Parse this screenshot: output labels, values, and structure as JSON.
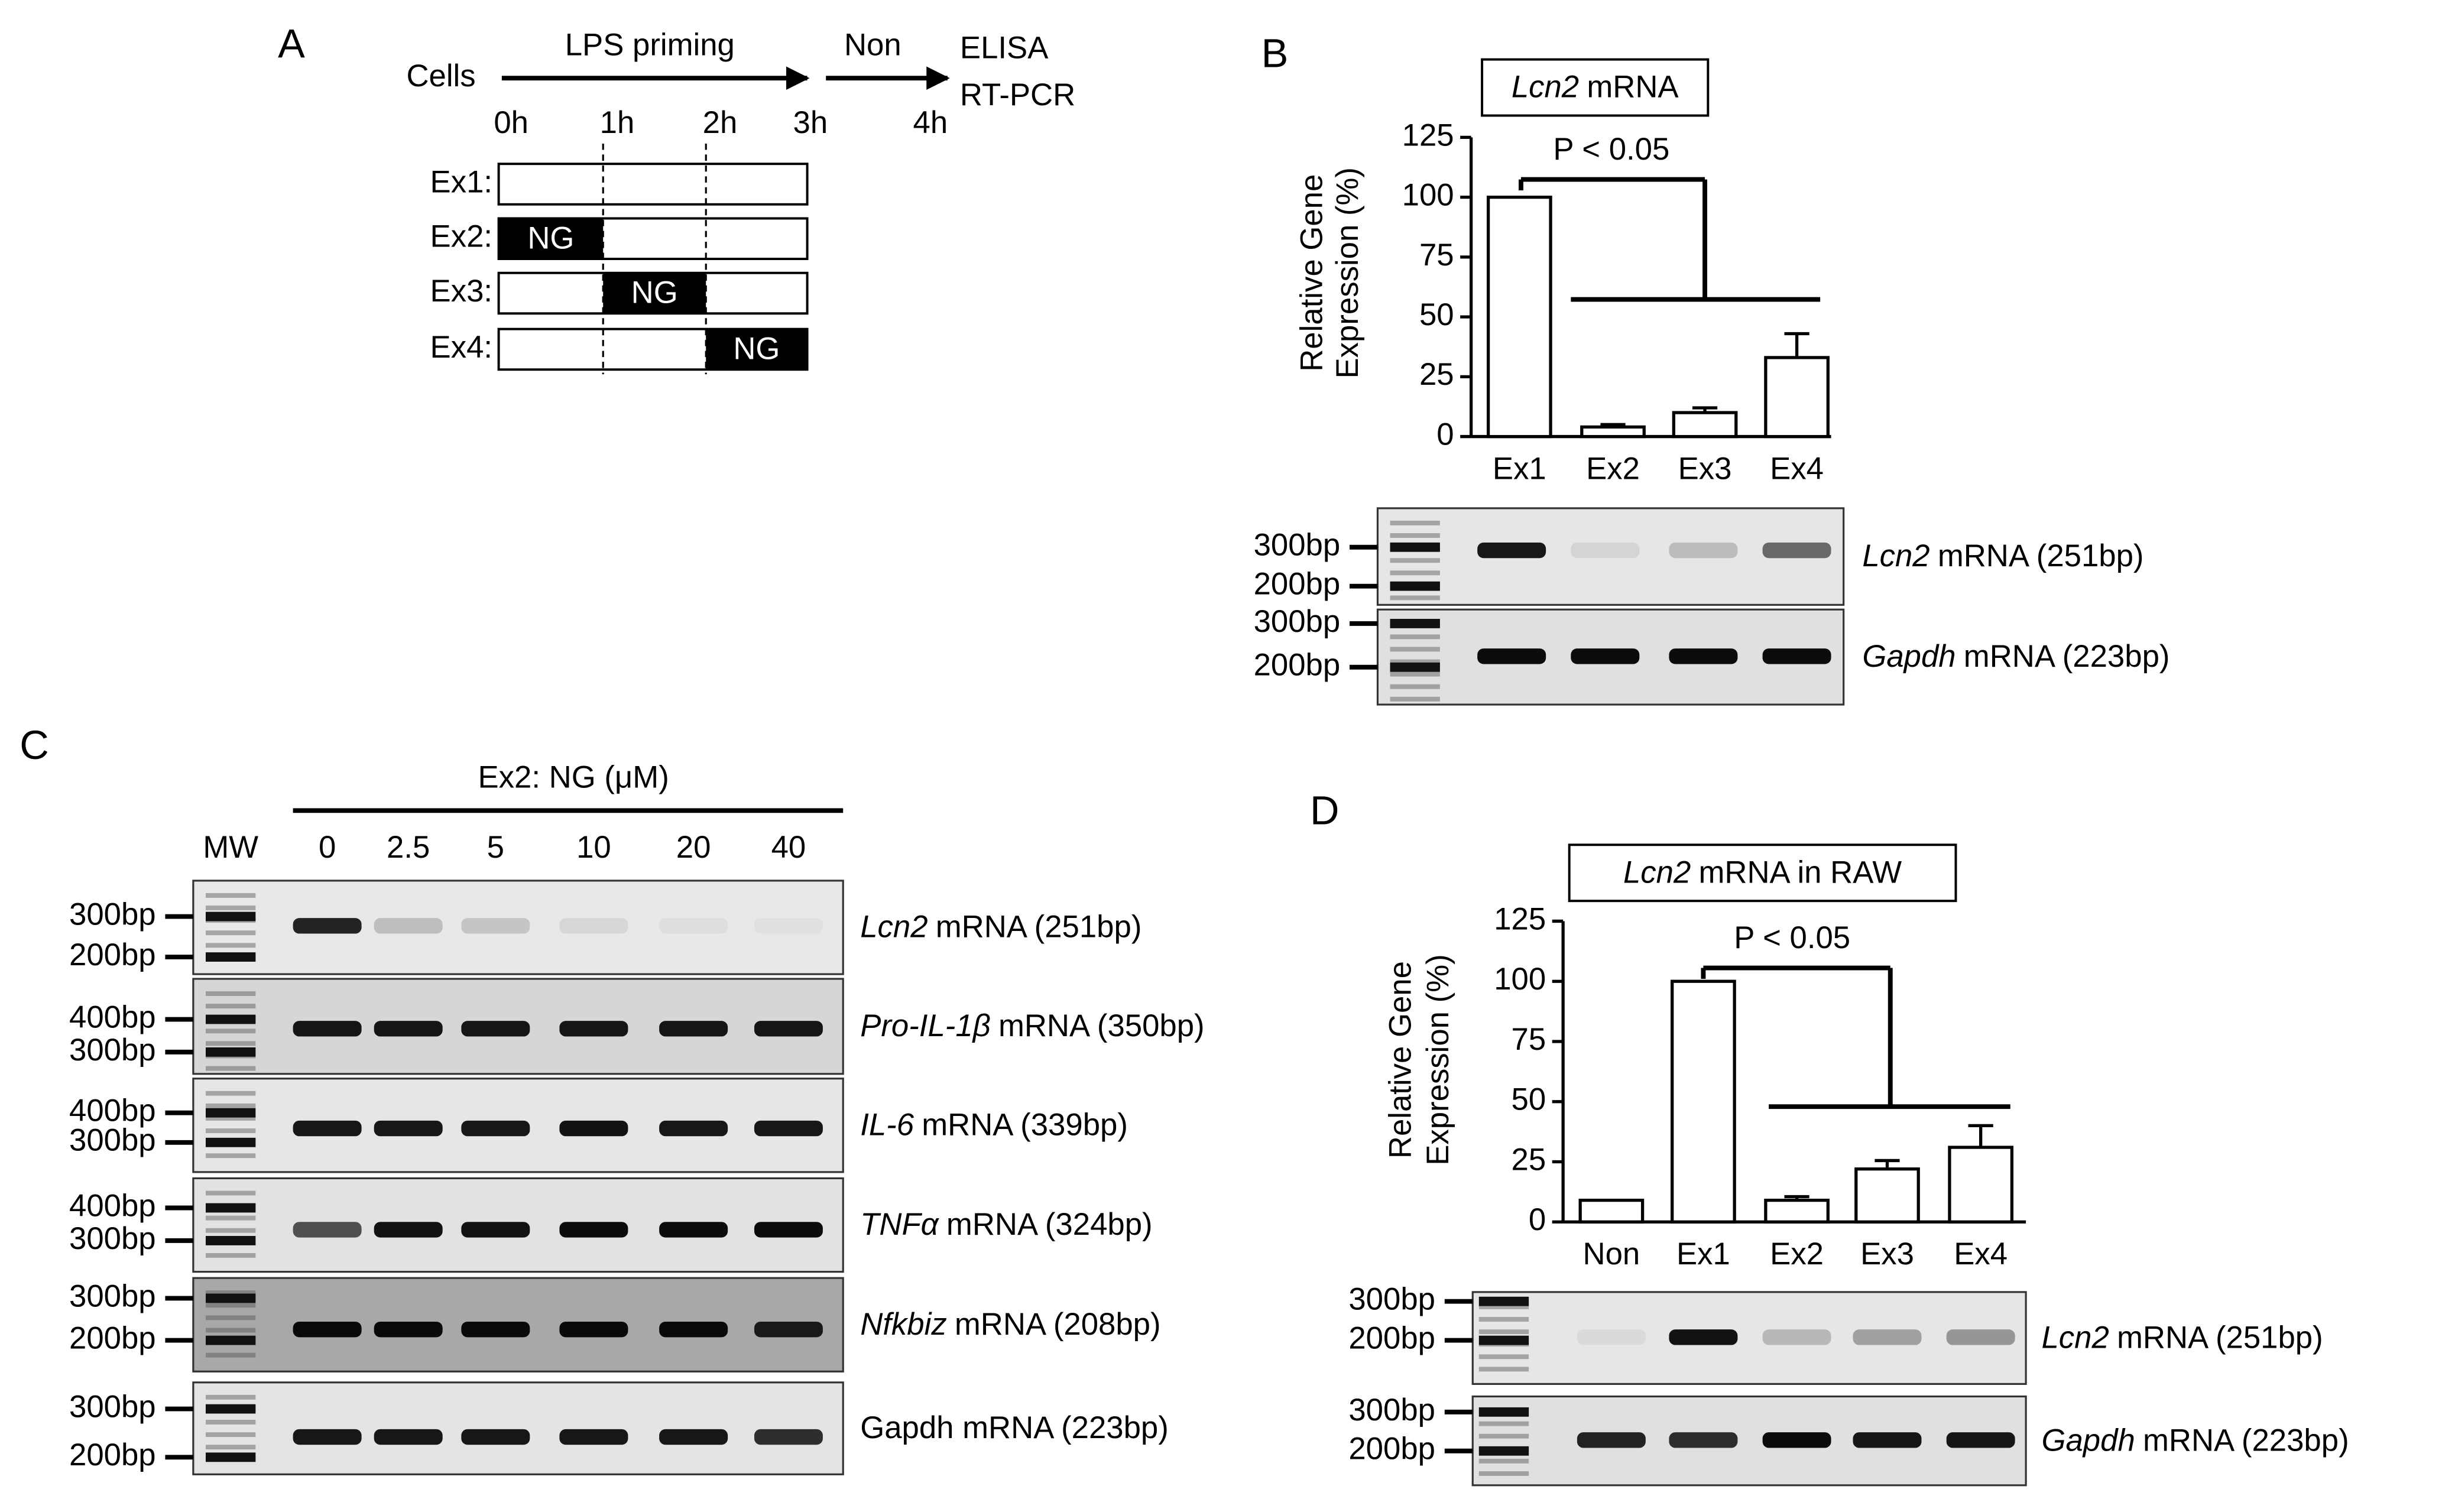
{
  "panel_labels": [
    "A",
    "B",
    "C",
    "D"
  ],
  "schematic": {
    "start": "Cells",
    "priming": "LPS priming",
    "non": "Non",
    "readouts": [
      "ELISA",
      "RT-PCR"
    ],
    "times": [
      "0h",
      "1h",
      "2h",
      "3h",
      "4h"
    ],
    "rows": [
      "Ex1:",
      "Ex2:",
      "Ex3:",
      "Ex4:"
    ],
    "treatment": "NG"
  },
  "chart_data": [
    {
      "type": "bar",
      "title_gene": "Lcn2",
      "title": "mRNA",
      "ylabel": [
        "Relative Gene",
        "Expression (%)"
      ],
      "categories": [
        "Ex1",
        "Ex2",
        "Ex3",
        "Ex4"
      ],
      "values": [
        100,
        4,
        10,
        33
      ],
      "errors": [
        null,
        1,
        2,
        10
      ],
      "ylim": [
        0,
        125
      ],
      "yticks": [
        0,
        25,
        50,
        75,
        100,
        125
      ],
      "annotation": "P < 0.05",
      "color": "#ffffff"
    },
    {
      "type": "bar",
      "title_gene": "Lcn2",
      "title": "mRNA in RAW",
      "ylabel": [
        "Relative Gene",
        "Expression (%)"
      ],
      "categories": [
        "Non",
        "Ex1",
        "Ex2",
        "Ex3",
        "Ex4"
      ],
      "values": [
        9,
        100,
        9,
        22,
        31
      ],
      "errors": [
        null,
        null,
        1.5,
        3.5,
        9
      ],
      "ylim": [
        0,
        125
      ],
      "yticks": [
        0,
        25,
        50,
        75,
        100,
        125
      ],
      "annotation": "P < 0.05",
      "color": "#ffffff"
    }
  ],
  "gels": {
    "B": {
      "rows": [
        {
          "markers": [
            "300bp",
            "200bp"
          ],
          "gene": "Lcn2",
          "label": "mRNA (251bp)"
        },
        {
          "markers": [
            "300bp",
            "200bp"
          ],
          "gene": "Gapdh",
          "label": "mRNA (223bp)"
        }
      ]
    },
    "C": {
      "header": "Ex2: NG (μM)",
      "ladder": "MW",
      "lanes": [
        "0",
        "2.5",
        "5",
        "10",
        "20",
        "40"
      ],
      "rows": [
        {
          "markers": [
            "300bp",
            "200bp"
          ],
          "gene": "Lcn2",
          "label": "mRNA (251bp)"
        },
        {
          "markers": [
            "400bp",
            "300bp"
          ],
          "gene": "Pro-IL-1β",
          "label": "mRNA (350bp)"
        },
        {
          "markers": [
            "400bp",
            "300bp"
          ],
          "gene": "IL-6",
          "label": "mRNA (339bp)"
        },
        {
          "markers": [
            "400bp",
            "300bp"
          ],
          "gene": "TNFα",
          "label": "mRNA (324bp)"
        },
        {
          "markers": [
            "300bp",
            "200bp"
          ],
          "gene": "Nfkbiz",
          "label": "mRNA (208bp)"
        },
        {
          "markers": [
            "300bp",
            "200bp"
          ],
          "label": "Gapdh mRNA (223bp)"
        }
      ]
    },
    "D": {
      "rows": [
        {
          "markers": [
            "300bp",
            "200bp"
          ],
          "gene": "Lcn2",
          "label": "mRNA (251bp)"
        },
        {
          "markers": [
            "300bp",
            "200bp"
          ],
          "gene": "Gapdh",
          "label": "mRNA (223bp)"
        }
      ]
    }
  }
}
